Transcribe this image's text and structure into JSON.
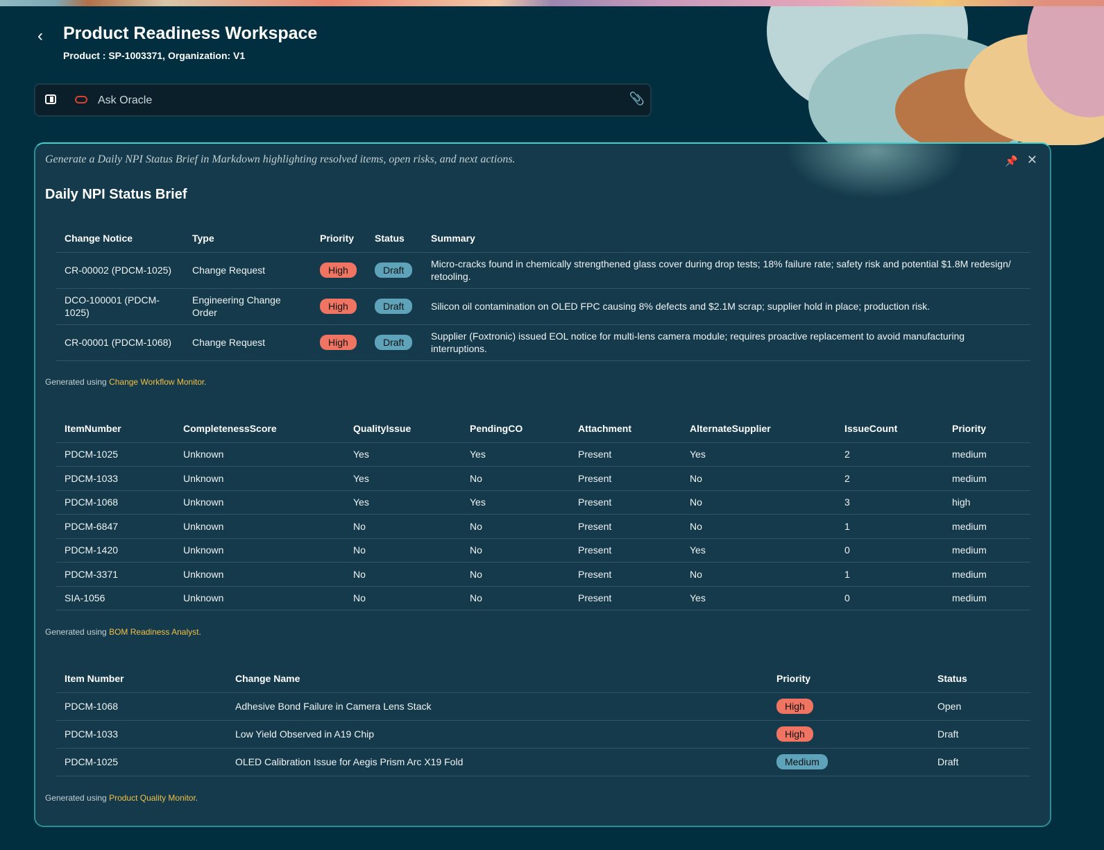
{
  "header": {
    "title": "Product Readiness Workspace",
    "subtitle": "Product : SP-1003371, Organization: V1"
  },
  "ask": {
    "placeholder": "Ask Oracle"
  },
  "card": {
    "prompt": "Generate a Daily NPI Status Brief in Markdown highlighting resolved items, open risks, and next actions.",
    "title": "Daily NPI Status Brief",
    "table1": {
      "headers": [
        "Change Notice",
        "Type",
        "Priority",
        "Status",
        "Summary"
      ],
      "rows": [
        [
          "CR-00002 (PDCM-1025)",
          "Change Request",
          "High",
          "Draft",
          "Micro-cracks found in chemically strengthened glass cover during drop tests; 18% failure rate; safety risk and potential $1.8M redesign/ retooling."
        ],
        [
          "DCO-100001 (PDCM-1025)",
          "Engineering Change Order",
          "High",
          "Draft",
          "Silicon oil contamination on OLED FPC causing 8% defects and $2.1M scrap; supplier hold in place; production risk."
        ],
        [
          "CR-00001 (PDCM-1068)",
          "Change Request",
          "High",
          "Draft",
          "Supplier (Foxtronic) issued EOL notice for multi-lens camera module; requires proactive replacement to avoid manufacturing interruptions."
        ]
      ]
    },
    "gen1": {
      "prefix": "Generated using ",
      "link": "Change Workflow Monitor",
      "suffix": "."
    },
    "table2": {
      "headers": [
        "ItemNumber",
        "CompletenessScore",
        "QualityIssue",
        "PendingCO",
        "Attachment",
        "AlternateSupplier",
        "IssueCount",
        "Priority"
      ],
      "rows": [
        [
          "PDCM-1025",
          "Unknown",
          "Yes",
          "Yes",
          "Present",
          "Yes",
          "2",
          "medium"
        ],
        [
          "PDCM-1033",
          "Unknown",
          "Yes",
          "No",
          "Present",
          "No",
          "2",
          "medium"
        ],
        [
          "PDCM-1068",
          "Unknown",
          "Yes",
          "Yes",
          "Present",
          "No",
          "3",
          "high"
        ],
        [
          "PDCM-6847",
          "Unknown",
          "No",
          "No",
          "Present",
          "No",
          "1",
          "medium"
        ],
        [
          "PDCM-1420",
          "Unknown",
          "No",
          "No",
          "Present",
          "Yes",
          "0",
          "medium"
        ],
        [
          "PDCM-3371",
          "Unknown",
          "No",
          "No",
          "Present",
          "No",
          "1",
          "medium"
        ],
        [
          "SIA-1056",
          "Unknown",
          "No",
          "No",
          "Present",
          "Yes",
          "0",
          "medium"
        ]
      ]
    },
    "gen2": {
      "prefix": "Generated using ",
      "link": "BOM Readiness Analyst",
      "suffix": "."
    },
    "table3": {
      "headers": [
        "Item Number",
        "Change Name",
        "Priority",
        "Status"
      ],
      "rows": [
        [
          "PDCM-1068",
          "Adhesive Bond Failure in Camera Lens Stack",
          "High",
          "Open"
        ],
        [
          "PDCM-1033",
          "Low Yield Observed in A19 Chip",
          "High",
          "Draft"
        ],
        [
          "PDCM-1025",
          "OLED Calibration Issue for Aegis Prism Arc X19 Fold",
          "Medium",
          "Draft"
        ]
      ]
    },
    "gen3": {
      "prefix": "Generated using ",
      "link": "Product Quality Monitor",
      "suffix": "."
    }
  },
  "colors": {
    "background": "#022f40",
    "card": "#143a4b",
    "accent_border": "#3fd3d0",
    "high": "#ef7462",
    "medium": "#5fa3bb",
    "draft": "#5fa3bb",
    "link": "#f0c048"
  }
}
